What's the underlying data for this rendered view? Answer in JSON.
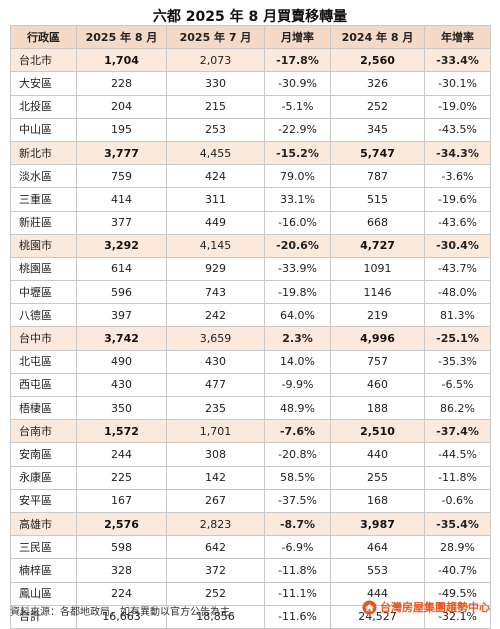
{
  "title": "六都 2025 年 8 月買賣移轉量",
  "colors": {
    "header_bg": "#f4d9c6",
    "city_row_bg": "#fbe9dc",
    "grid_line": "#c9c9c9",
    "logo_orange": "#e8561f"
  },
  "table": {
    "headers": [
      "行政區",
      "2025 年 8 月",
      "2025 年 7 月",
      "月增率",
      "2024 年 8 月",
      "年增率"
    ],
    "rows": [
      {
        "type": "city",
        "cells": [
          "台北市",
          "1,704",
          "2,073",
          "-17.8%",
          "2,560",
          "-33.4%"
        ]
      },
      {
        "type": "district",
        "cells": [
          "大安區",
          "228",
          "330",
          "-30.9%",
          "326",
          "-30.1%"
        ]
      },
      {
        "type": "district",
        "cells": [
          "北投區",
          "204",
          "215",
          "-5.1%",
          "252",
          "-19.0%"
        ]
      },
      {
        "type": "district",
        "cells": [
          "中山區",
          "195",
          "253",
          "-22.9%",
          "345",
          "-43.5%"
        ]
      },
      {
        "type": "city",
        "cells": [
          "新北市",
          "3,777",
          "4,455",
          "-15.2%",
          "5,747",
          "-34.3%"
        ]
      },
      {
        "type": "district",
        "cells": [
          "淡水區",
          "759",
          "424",
          "79.0%",
          "787",
          "-3.6%"
        ]
      },
      {
        "type": "district",
        "cells": [
          "三重區",
          "414",
          "311",
          "33.1%",
          "515",
          "-19.6%"
        ]
      },
      {
        "type": "district",
        "cells": [
          "新莊區",
          "377",
          "449",
          "-16.0%",
          "668",
          "-43.6%"
        ]
      },
      {
        "type": "city",
        "cells": [
          "桃園市",
          "3,292",
          "4,145",
          "-20.6%",
          "4,727",
          "-30.4%"
        ]
      },
      {
        "type": "district",
        "cells": [
          "桃園區",
          "614",
          "929",
          "-33.9%",
          "1091",
          "-43.7%"
        ]
      },
      {
        "type": "district",
        "cells": [
          "中壢區",
          "596",
          "743",
          "-19.8%",
          "1146",
          "-48.0%"
        ]
      },
      {
        "type": "district",
        "cells": [
          "八德區",
          "397",
          "242",
          "64.0%",
          "219",
          "81.3%"
        ]
      },
      {
        "type": "city",
        "cells": [
          "台中市",
          "3,742",
          "3,659",
          "2.3%",
          "4,996",
          "-25.1%"
        ]
      },
      {
        "type": "district",
        "cells": [
          "北屯區",
          "490",
          "430",
          "14.0%",
          "757",
          "-35.3%"
        ]
      },
      {
        "type": "district",
        "cells": [
          "西屯區",
          "430",
          "477",
          "-9.9%",
          "460",
          "-6.5%"
        ]
      },
      {
        "type": "district",
        "cells": [
          "梧棲區",
          "350",
          "235",
          "48.9%",
          "188",
          "86.2%"
        ]
      },
      {
        "type": "city",
        "cells": [
          "台南市",
          "1,572",
          "1,701",
          "-7.6%",
          "2,510",
          "-37.4%"
        ]
      },
      {
        "type": "district",
        "cells": [
          "安南區",
          "244",
          "308",
          "-20.8%",
          "440",
          "-44.5%"
        ]
      },
      {
        "type": "district",
        "cells": [
          "永康區",
          "225",
          "142",
          "58.5%",
          "255",
          "-11.8%"
        ]
      },
      {
        "type": "district",
        "cells": [
          "安平區",
          "167",
          "267",
          "-37.5%",
          "168",
          "-0.6%"
        ]
      },
      {
        "type": "city",
        "cells": [
          "高雄市",
          "2,576",
          "2,823",
          "-8.7%",
          "3,987",
          "-35.4%"
        ]
      },
      {
        "type": "district",
        "cells": [
          "三民區",
          "598",
          "642",
          "-6.9%",
          "464",
          "28.9%"
        ]
      },
      {
        "type": "district",
        "cells": [
          "楠梓區",
          "328",
          "372",
          "-11.8%",
          "553",
          "-40.7%"
        ]
      },
      {
        "type": "district",
        "cells": [
          "鳳山區",
          "224",
          "252",
          "-11.1%",
          "444",
          "-49.5%"
        ]
      },
      {
        "type": "total",
        "cells": [
          "合計",
          "16,663",
          "18,856",
          "-11.6%",
          "24,527",
          "-32.1%"
        ]
      }
    ]
  },
  "footer": {
    "source": "資料來源：各都地政局，如有異動以官方公告為主。",
    "logo_text": "台灣房屋集團趨勢中心",
    "logo_icon": "house-logo-icon"
  }
}
